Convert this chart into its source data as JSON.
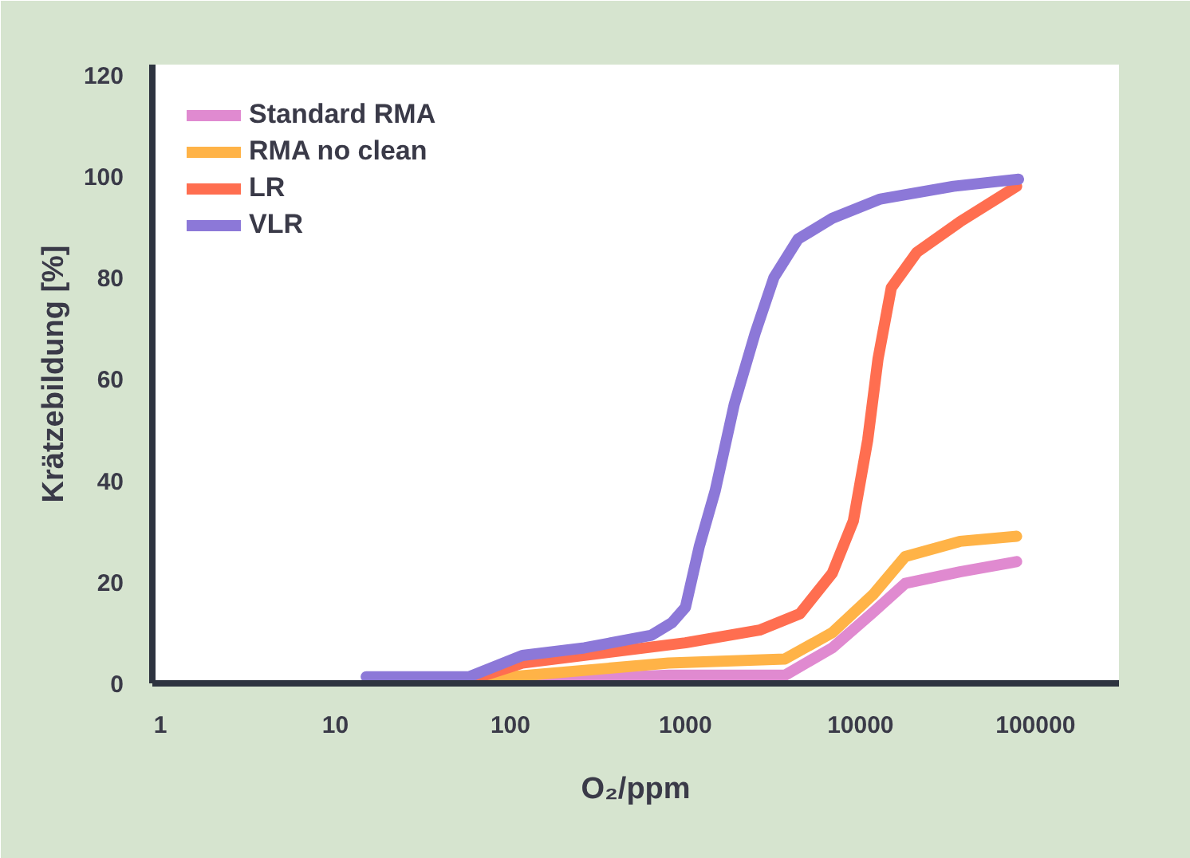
{
  "chart_data": {
    "type": "line",
    "xlabel": "O₂/ppm",
    "ylabel": "Krätzebildung [%]",
    "log": "x",
    "xlim": [
      0.9,
      300000
    ],
    "xticks": [
      1,
      10,
      100,
      1000,
      10000,
      100000
    ],
    "ylim": [
      0,
      122
    ],
    "yticks": [
      0,
      20,
      40,
      60,
      80,
      100,
      120
    ],
    "grid": false,
    "legend": "top left",
    "marker": "none",
    "line_style": "solid",
    "series": [
      {
        "name": "Standard RMA",
        "color": "#e08ad0",
        "x": [
          117,
          800,
          3700,
          6900,
          11800,
          18000,
          37000,
          78000
        ],
        "values": [
          0.5,
          1.6,
          1.6,
          7,
          14,
          19.7,
          22,
          24
        ]
      },
      {
        "name": "RMA no clean",
        "color": "#ffb347",
        "x": [
          58,
          800,
          3700,
          6900,
          11800,
          18000,
          37000,
          78000
        ],
        "values": [
          0.6,
          4,
          4.8,
          10,
          17.5,
          25,
          28,
          29
        ]
      },
      {
        "name": "LR",
        "color": "#ff6e50",
        "x": [
          58,
          117,
          1000,
          2650,
          4500,
          6900,
          9100,
          11000,
          12600,
          15000,
          21000,
          37000,
          78000
        ],
        "values": [
          0.6,
          4,
          8,
          10.5,
          13.7,
          21.7,
          32,
          48,
          64,
          78,
          85,
          91,
          98
        ]
      },
      {
        "name": "VLR",
        "color": "#8c78d8",
        "x": [
          15,
          58,
          117,
          265,
          640,
          840,
          1000,
          1200,
          1480,
          1900,
          2500,
          3200,
          4400,
          6900,
          13000,
          34000,
          80000
        ],
        "values": [
          1.3,
          1.3,
          5.5,
          7,
          9.5,
          12,
          15,
          27,
          38,
          55,
          69,
          80,
          87.6,
          91.7,
          95.5,
          98,
          99.4
        ]
      }
    ]
  }
}
